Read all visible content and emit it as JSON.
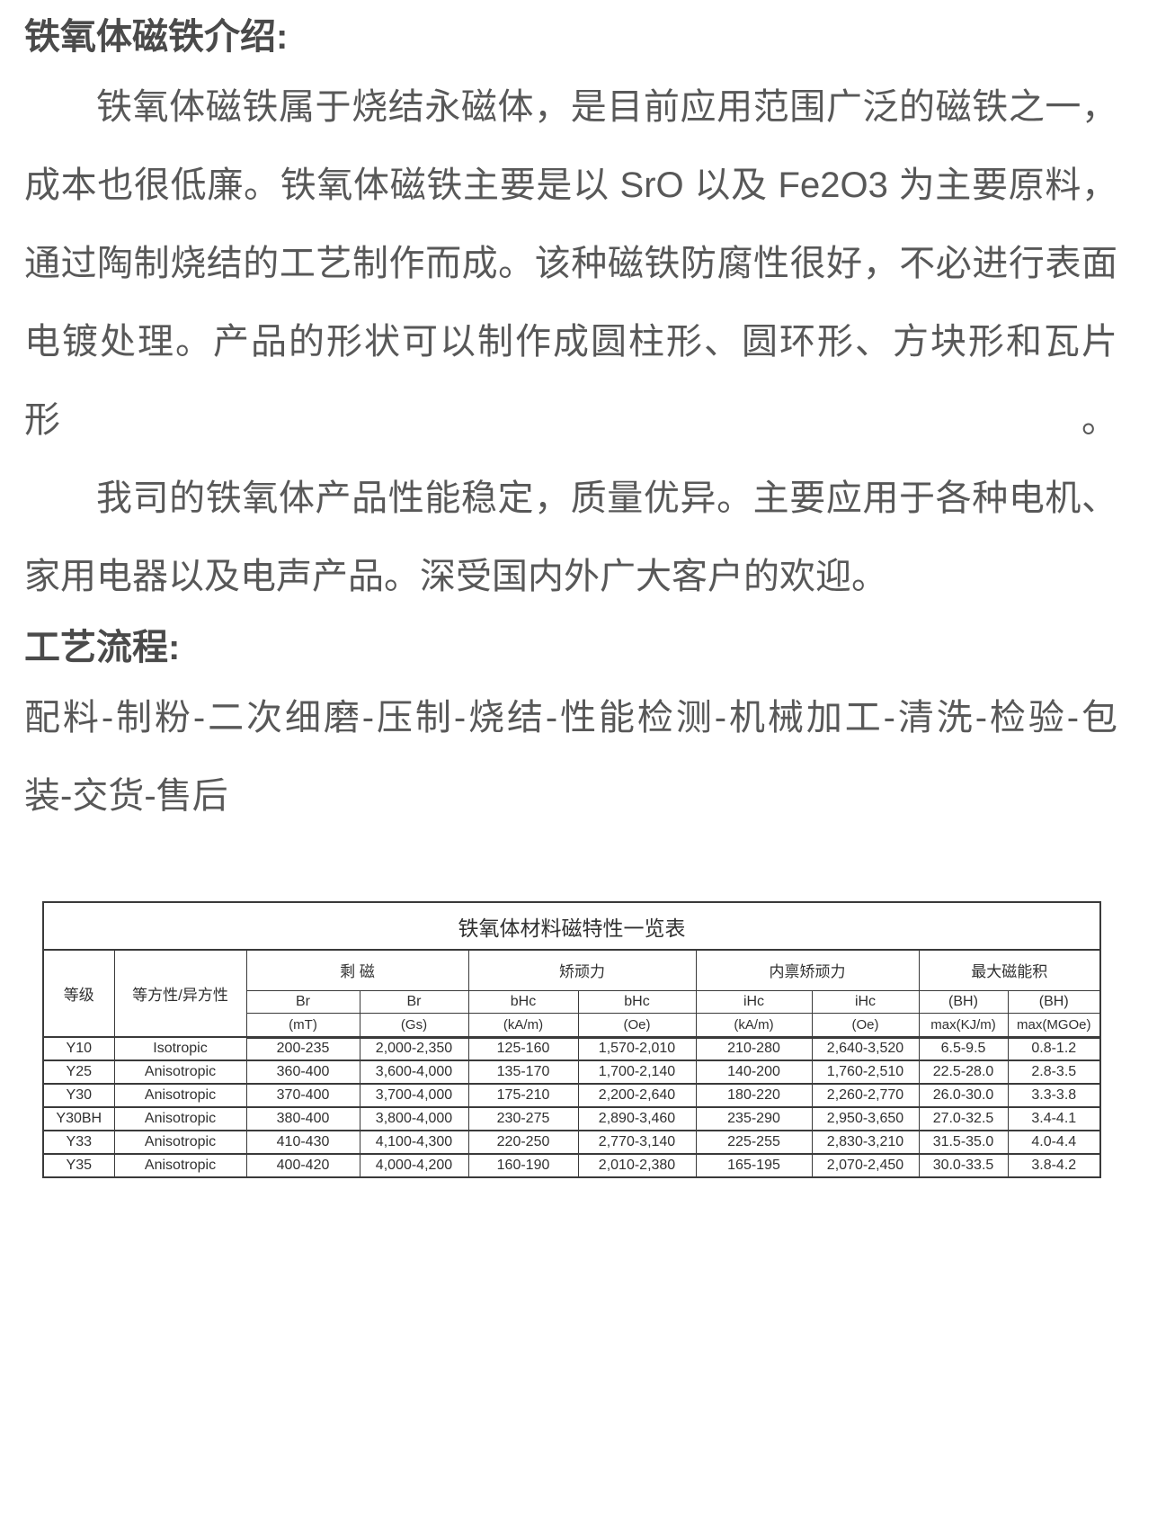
{
  "content": {
    "intro_heading": "铁氧体磁铁介绍:",
    "intro_lines": [
      "铁氧体磁铁属于烧结永磁体，是目前应用范围广泛的磁铁之一，",
      "成本也很低廉。铁氧体磁铁主要是以 SrO 以及 Fe2O3 为主要原料，",
      "通过陶制烧结的工艺制作而成。该种磁铁防腐性很好，不必进行表面",
      "电镀处理。产品的形状可以制作成圆柱形、圆环形、方块形和瓦片形。",
      "我司的铁氧体产品性能稳定，质量优异。主要应用于各种电机、",
      "家用电器以及电声产品。深受国内外广大客户的欢迎。"
    ],
    "process_heading": "工艺流程:",
    "process_lines": [
      "配料-制粉-二次细磨-压制-烧结-性能检测-机械加工-清洗-检验-包",
      "装-交货-售后"
    ]
  },
  "table": {
    "title": "铁氧体材料磁特性一览表",
    "header": {
      "grade": "等级",
      "isotropy": "等方性/异方性",
      "groups": [
        "剩 磁",
        "矫顽力",
        "内禀矫顽力",
        "最大磁能积"
      ],
      "sub_top": [
        "Br",
        "Br",
        "bHc",
        "bHc",
        "iHc",
        "iHc",
        "(BH)",
        "(BH)"
      ],
      "sub_bottom": [
        "(mT)",
        "(Gs)",
        "(kA/m)",
        "(Oe)",
        "(kA/m)",
        "(Oe)",
        "max(KJ/m)",
        "max(MGOe)"
      ]
    },
    "rows": [
      [
        "Y10",
        "Isotropic",
        "200-235",
        "2,000-2,350",
        "125-160",
        "1,570-2,010",
        "210-280",
        "2,640-3,520",
        "6.5-9.5",
        "0.8-1.2"
      ],
      [
        "Y25",
        "Anisotropic",
        "360-400",
        "3,600-4,000",
        "135-170",
        "1,700-2,140",
        "140-200",
        "1,760-2,510",
        "22.5-28.0",
        "2.8-3.5"
      ],
      [
        "Y30",
        "Anisotropic",
        "370-400",
        "3,700-4,000",
        "175-210",
        "2,200-2,640",
        "180-220",
        "2,260-2,770",
        "26.0-30.0",
        "3.3-3.8"
      ],
      [
        "Y30BH",
        "Anisotropic",
        "380-400",
        "3,800-4,000",
        "230-275",
        "2,890-3,460",
        "235-290",
        "2,950-3,650",
        "27.0-32.5",
        "3.4-4.1"
      ],
      [
        "Y33",
        "Anisotropic",
        "410-430",
        "4,100-4,300",
        "220-250",
        "2,770-3,140",
        "225-255",
        "2,830-3,210",
        "31.5-35.0",
        "4.0-4.4"
      ],
      [
        "Y35",
        "Anisotropic",
        "400-420",
        "4,000-4,200",
        "160-190",
        "2,010-2,380",
        "165-195",
        "2,070-2,450",
        "30.0-33.5",
        "3.8-4.2"
      ]
    ]
  },
  "colors": {
    "body_text": "#585858",
    "heading_text": "#4a4a4a",
    "table_text": "#303030",
    "table_border": "#3a3a3a",
    "page_bg": "#ffffff"
  }
}
